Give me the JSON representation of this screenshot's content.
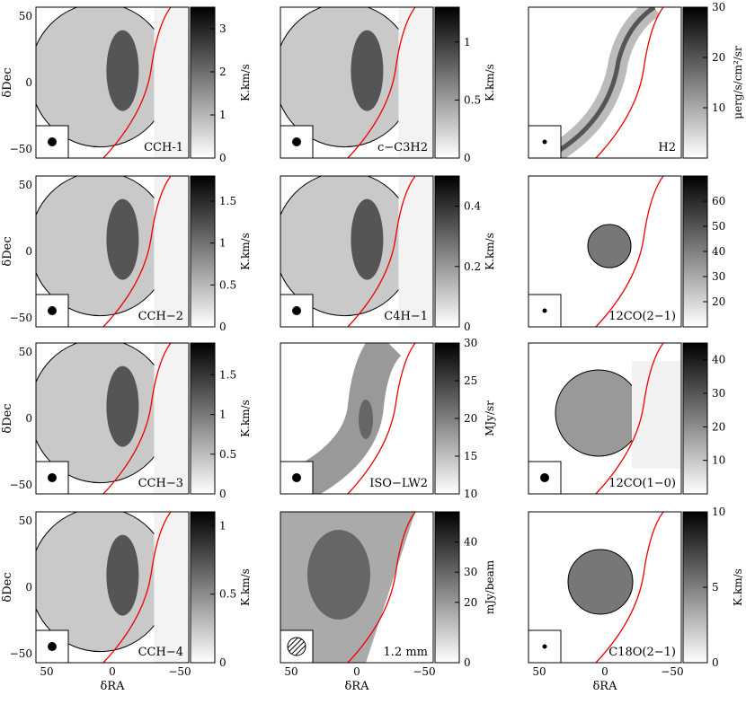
{
  "chart_data": [
    {
      "type": "heatmap",
      "label": "CCH-1",
      "colorbar_label": "K.km/s",
      "colorbar_ticks": [
        "0",
        "1",
        "2",
        "3"
      ],
      "range": [
        0,
        3.5
      ],
      "beam": "solid",
      "ylabel": "δDec",
      "yticks": [
        "50",
        "0",
        "−50"
      ],
      "xlabel": "",
      "xticks": []
    },
    {
      "type": "heatmap",
      "label": "c−C3H2",
      "colorbar_label": "K.km/s",
      "colorbar_ticks": [
        "0",
        "0.5",
        "1"
      ],
      "range": [
        0,
        1.3
      ],
      "beam": "solid",
      "ylabel": "",
      "yticks": [],
      "xlabel": "",
      "xticks": []
    },
    {
      "type": "heatmap",
      "label": "H2",
      "colorbar_label": "μerg/s/cm²/sr",
      "colorbar_ticks": [
        "10",
        "20",
        "30"
      ],
      "range": [
        0,
        30
      ],
      "beam": "small",
      "ylabel": "",
      "yticks": [],
      "xlabel": "",
      "xticks": []
    },
    {
      "type": "heatmap",
      "label": "CCH−2",
      "colorbar_label": "K.km/s",
      "colorbar_ticks": [
        "0",
        "0.5",
        "1",
        "1.5"
      ],
      "range": [
        0,
        1.8
      ],
      "beam": "solid",
      "ylabel": "δDec",
      "yticks": [
        "50",
        "0",
        "−50"
      ],
      "xlabel": "",
      "xticks": []
    },
    {
      "type": "heatmap",
      "label": "C4H−1",
      "colorbar_label": "K.km/s",
      "colorbar_ticks": [
        "0",
        "0.2",
        "0.4"
      ],
      "range": [
        0,
        0.5
      ],
      "beam": "solid",
      "ylabel": "",
      "yticks": [],
      "xlabel": "",
      "xticks": []
    },
    {
      "type": "heatmap",
      "label": "12CO(2−1)",
      "colorbar_label": "",
      "colorbar_ticks": [
        "20",
        "30",
        "40",
        "50",
        "60"
      ],
      "range": [
        10,
        70
      ],
      "beam": "small",
      "ylabel": "",
      "yticks": [],
      "xlabel": "",
      "xticks": []
    },
    {
      "type": "heatmap",
      "label": "CCH−3",
      "colorbar_label": "K.km/s",
      "colorbar_ticks": [
        "0",
        "0.5",
        "1",
        "1.5"
      ],
      "range": [
        0,
        1.9
      ],
      "beam": "solid",
      "ylabel": "δDec",
      "yticks": [
        "50",
        "0",
        "−50"
      ],
      "xlabel": "",
      "xticks": []
    },
    {
      "type": "heatmap",
      "label": "ISO−LW2",
      "colorbar_label": "MJy/sr",
      "colorbar_ticks": [
        "10",
        "15",
        "20",
        "25",
        "30"
      ],
      "range": [
        10,
        30
      ],
      "beam": "solid",
      "ylabel": "",
      "yticks": [],
      "xlabel": "",
      "xticks": []
    },
    {
      "type": "heatmap",
      "label": "12CO(1−0)",
      "colorbar_label": "",
      "colorbar_ticks": [
        "10",
        "20",
        "30",
        "40"
      ],
      "range": [
        0,
        45
      ],
      "beam": "solid",
      "ylabel": "",
      "yticks": [],
      "xlabel": "",
      "xticks": []
    },
    {
      "type": "heatmap",
      "label": "CCH−4",
      "colorbar_label": "K.km/s",
      "colorbar_ticks": [
        "0",
        "0.5",
        "1"
      ],
      "range": [
        0,
        1.1
      ],
      "beam": "solid",
      "ylabel": "δDec",
      "yticks": [
        "50",
        "0",
        "−50"
      ],
      "xlabel": "δRA",
      "xticks": [
        "50",
        "0",
        "−50"
      ]
    },
    {
      "type": "heatmap",
      "label": "1.2 mm",
      "colorbar_label": "mJy/beam",
      "colorbar_ticks": [
        "0",
        "20",
        "30",
        "40"
      ],
      "range": [
        0,
        50
      ],
      "beam": "hatched",
      "ylabel": "",
      "yticks": [],
      "xlabel": "δRA",
      "xticks": [
        "50",
        "0",
        "−50"
      ]
    },
    {
      "type": "heatmap",
      "label": "C18O(2−1)",
      "colorbar_label": "K.km/s",
      "colorbar_ticks": [
        "0",
        "5",
        "10"
      ],
      "range": [
        0,
        10
      ],
      "beam": "small",
      "ylabel": "",
      "yticks": [],
      "xlabel": "δRA",
      "xticks": [
        "50",
        "0",
        "−50"
      ]
    }
  ]
}
